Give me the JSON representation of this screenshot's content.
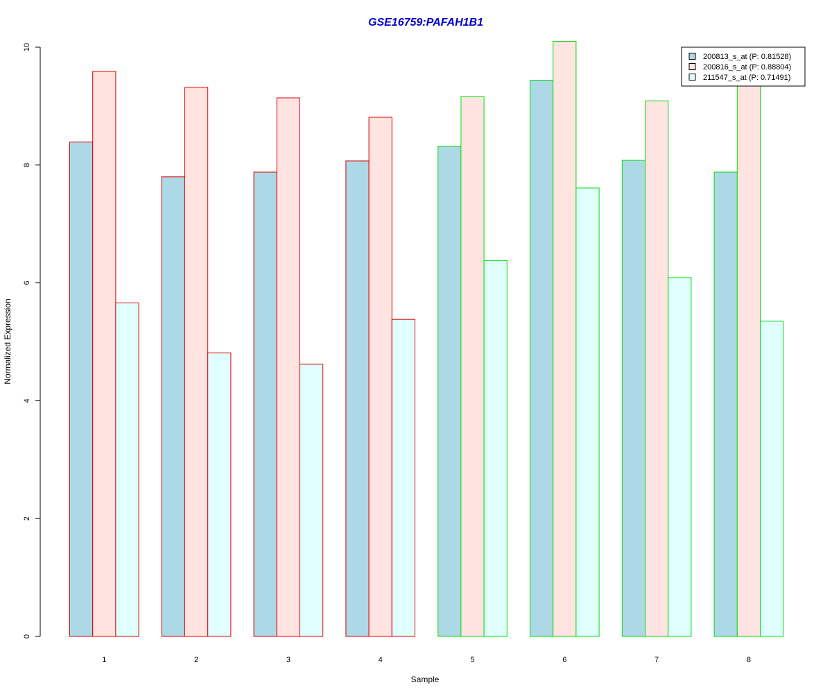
{
  "chart_data": {
    "type": "bar",
    "title": "GSE16759:PAFAH1B1",
    "xlabel": "Sample",
    "ylabel": "Normalized Expression",
    "categories": [
      "1",
      "2",
      "3",
      "4",
      "5",
      "6",
      "7",
      "8"
    ],
    "ylim": [
      0,
      10
    ],
    "yticks": [
      0,
      2,
      4,
      6,
      8,
      10
    ],
    "grid": false,
    "legend_position": "top-right",
    "series": [
      {
        "name": "200813_s_at (P: 0.81528)",
        "color": "#add8e6",
        "values": [
          8.39,
          7.8,
          7.88,
          8.07,
          8.32,
          9.44,
          8.08,
          7.88
        ]
      },
      {
        "name": "200816_s_at (P: 0.88804)",
        "color": "#ffe4e1",
        "values": [
          9.59,
          9.32,
          9.14,
          8.81,
          9.16,
          10.1,
          9.09,
          9.45
        ]
      },
      {
        "name": "211547_s_at (P: 0.71491)",
        "color": "#e0ffff",
        "values": [
          5.66,
          4.81,
          4.62,
          5.38,
          6.38,
          7.61,
          6.09,
          5.35
        ]
      }
    ],
    "group_border_colors": [
      "#dd0000",
      "#dd0000",
      "#dd0000",
      "#dd0000",
      "#00dd00",
      "#00dd00",
      "#00dd00",
      "#00dd00"
    ],
    "title_color": "#0000cc"
  }
}
